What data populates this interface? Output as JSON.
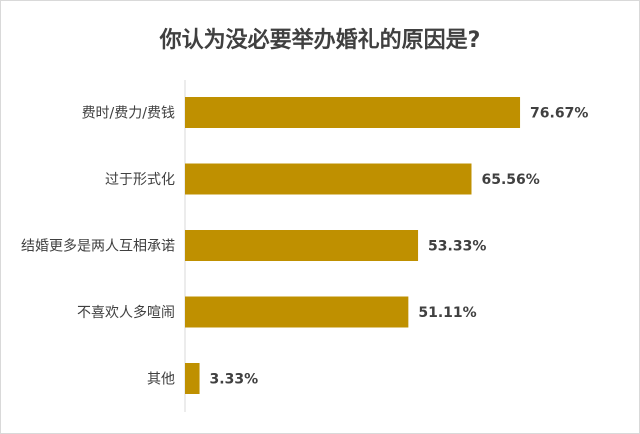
{
  "chart_data": {
    "type": "bar",
    "orientation": "horizontal",
    "title": "你认为没必要举办婚礼的原因是?",
    "categories": [
      "费时/费力/费钱",
      "过于形式化",
      "结婚更多是两人互相承诺",
      "不喜欢人多喧闹",
      "其他"
    ],
    "values": [
      76.67,
      65.56,
      53.33,
      51.11,
      3.33
    ],
    "value_labels": [
      "76.67%",
      "65.56%",
      "53.33%",
      "51.11%",
      "3.33%"
    ],
    "xlim": [
      0,
      100
    ],
    "bar_color": "#BF9000",
    "grid": false,
    "legend": "none"
  }
}
